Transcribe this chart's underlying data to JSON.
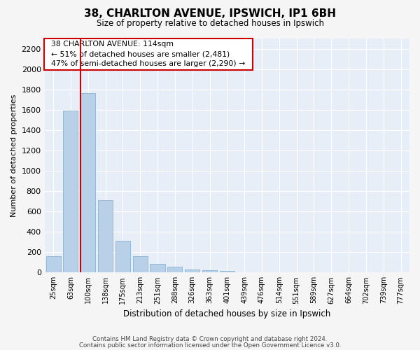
{
  "title": "38, CHARLTON AVENUE, IPSWICH, IP1 6BH",
  "subtitle": "Size of property relative to detached houses in Ipswich",
  "xlabel": "Distribution of detached houses by size in Ipswich",
  "ylabel": "Number of detached properties",
  "bar_color": "#b8d0e8",
  "bar_edgecolor": "#8ab4d4",
  "background_color": "#e8eef8",
  "grid_color": "#ffffff",
  "categories": [
    "25sqm",
    "63sqm",
    "100sqm",
    "138sqm",
    "175sqm",
    "213sqm",
    "251sqm",
    "288sqm",
    "326sqm",
    "363sqm",
    "401sqm",
    "439sqm",
    "476sqm",
    "514sqm",
    "551sqm",
    "589sqm",
    "627sqm",
    "664sqm",
    "702sqm",
    "739sqm",
    "777sqm"
  ],
  "values": [
    160,
    1590,
    1760,
    710,
    315,
    160,
    85,
    55,
    30,
    20,
    15,
    5,
    5,
    0,
    0,
    0,
    0,
    0,
    0,
    0,
    0
  ],
  "ylim": [
    0,
    2300
  ],
  "yticks": [
    0,
    200,
    400,
    600,
    800,
    1000,
    1200,
    1400,
    1600,
    1800,
    2000,
    2200
  ],
  "property_line_x": 2,
  "annotation_text": "  38 CHARLTON AVENUE: 114sqm  \n  ← 51% of detached houses are smaller (2,481)  \n  47% of semi-detached houses are larger (2,290) →  ",
  "annotation_box_color": "#ffffff",
  "annotation_border_color": "#cc0000",
  "line_color": "#cc0000",
  "footer_line1": "Contains HM Land Registry data © Crown copyright and database right 2024.",
  "footer_line2": "Contains public sector information licensed under the Open Government Licence v3.0."
}
